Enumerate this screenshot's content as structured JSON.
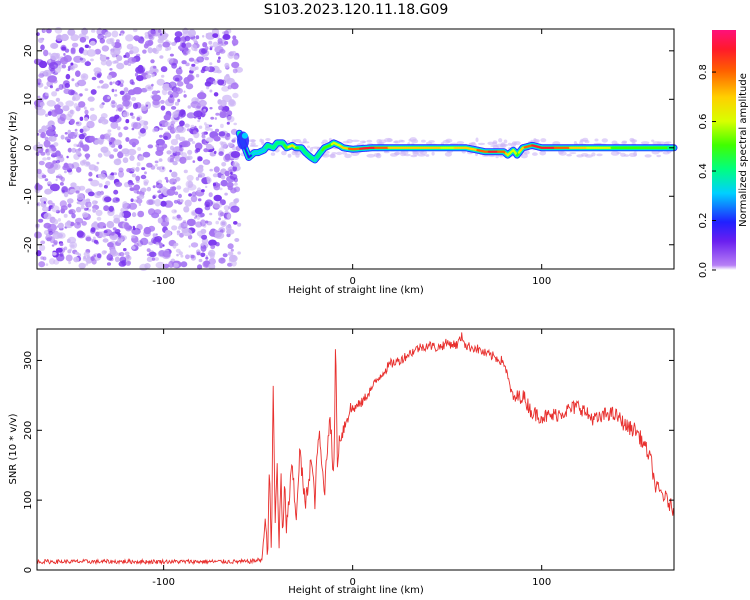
{
  "title": "S103.2023.120.11.18.G09",
  "colors": {
    "snr_line": "#e8302e",
    "noise_dots": "#7a35ee",
    "noise_light": "#cdb6f5",
    "frame": "#000000"
  },
  "chart_data": [
    {
      "type": "heatmap",
      "xlabel": "Height of straight line (km)",
      "ylabel": "Frequency (Hz)",
      "xlim": [
        -167,
        170
      ],
      "ylim": [
        -25,
        24.5
      ],
      "xticks": [
        -100,
        0,
        100
      ],
      "yticks": [
        -20,
        -10,
        0,
        10,
        20
      ],
      "noise_region_x": [
        -167,
        -60
      ],
      "ridge": {
        "x": [
          -60,
          -57,
          -55,
          -52,
          -50,
          -47,
          -45,
          -42,
          -40,
          -37,
          -35,
          -32,
          -30,
          -27,
          -25,
          -22,
          -20,
          -17,
          -15,
          -12,
          -10,
          -7,
          -5,
          0,
          10,
          20,
          30,
          40,
          50,
          60,
          70,
          75,
          80,
          82,
          85,
          87,
          90,
          95,
          100,
          110,
          120,
          130,
          140,
          150,
          160,
          170
        ],
        "frequency": [
          3,
          0,
          -2,
          -1,
          -1,
          -0.5,
          0.5,
          0,
          1,
          1,
          0,
          0.5,
          0,
          0,
          -1,
          -2,
          -2.5,
          -1,
          0,
          0.5,
          1,
          0.5,
          0,
          -0.3,
          0,
          0,
          0,
          0,
          0,
          0,
          -0.8,
          -0.8,
          -0.8,
          -1.5,
          -0.5,
          -1.5,
          0,
          0.5,
          0,
          0,
          0,
          0,
          0,
          0,
          0,
          0
        ],
        "amplitude": [
          0.45,
          0.3,
          0.3,
          0.35,
          0.4,
          0.4,
          0.5,
          0.45,
          0.5,
          0.5,
          0.55,
          0.8,
          0.55,
          0.5,
          0.45,
          0.45,
          0.4,
          0.5,
          0.55,
          0.6,
          0.65,
          0.7,
          0.75,
          0.9,
          0.95,
          0.8,
          0.8,
          0.75,
          0.7,
          0.75,
          0.9,
          0.95,
          0.85,
          0.7,
          0.65,
          0.6,
          0.8,
          0.95,
          0.95,
          0.9,
          0.75,
          0.65,
          0.6,
          0.6,
          0.55,
          0.5
        ]
      },
      "colorbar": {
        "label": "Normalized spectral amplitude",
        "range": [
          0.0,
          0.97
        ],
        "ticks": [
          0.0,
          0.2,
          0.4,
          0.6,
          0.8
        ],
        "colormap": "hsv"
      }
    },
    {
      "type": "line",
      "xlabel": "Height of straight line (km)",
      "ylabel": "SNR (10 * v/v)",
      "xlim": [
        -167,
        170
      ],
      "ylim": [
        0,
        345
      ],
      "xticks": [
        -100,
        0,
        100
      ],
      "yticks": [
        0,
        100,
        200,
        300
      ],
      "grid": false,
      "series": [
        {
          "x": [
            -167,
            -150,
            -130,
            -110,
            -90,
            -70,
            -55,
            -48,
            -46,
            -45,
            -44,
            -43,
            -42,
            -41,
            -40,
            -39,
            -38,
            -37,
            -36,
            -35,
            -32,
            -30,
            -28,
            -25,
            -22,
            -20,
            -18,
            -15,
            -12,
            -10,
            -9,
            -8,
            -7,
            -5,
            -3,
            -1,
            0,
            5,
            10,
            15,
            20,
            25,
            30,
            35,
            40,
            45,
            50,
            55,
            58,
            60,
            65,
            70,
            75,
            80,
            83,
            85,
            90,
            95,
            100,
            105,
            110,
            115,
            120,
            125,
            130,
            135,
            140,
            145,
            150,
            155,
            158,
            160,
            165,
            170
          ],
          "y": [
            12,
            12,
            12,
            12,
            12,
            12,
            12,
            15,
            80,
            18,
            150,
            20,
            270,
            60,
            160,
            30,
            140,
            40,
            120,
            60,
            150,
            70,
            170,
            90,
            160,
            100,
            200,
            110,
            230,
            120,
            335,
            140,
            190,
            200,
            220,
            230,
            230,
            240,
            260,
            280,
            295,
            300,
            310,
            318,
            322,
            318,
            325,
            322,
            335,
            320,
            318,
            310,
            305,
            298,
            265,
            245,
            250,
            225,
            220,
            220,
            225,
            230,
            235,
            220,
            215,
            225,
            220,
            205,
            200,
            175,
            155,
            120,
            105,
            85
          ]
        }
      ]
    }
  ]
}
